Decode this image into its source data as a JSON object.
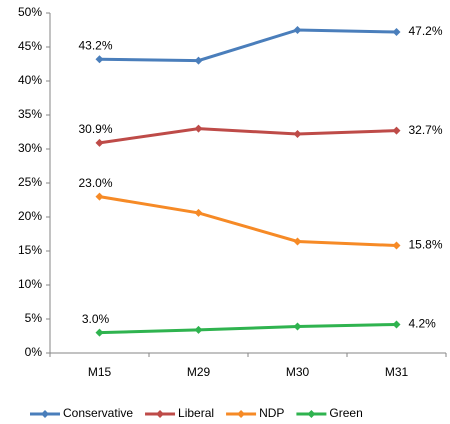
{
  "chart_data": {
    "type": "line",
    "categories": [
      "M15",
      "M29",
      "M30",
      "M31"
    ],
    "series": [
      {
        "name": "Conservative",
        "color": "#4a7ebb",
        "values": [
          43.2,
          43.0,
          47.5,
          47.2
        ],
        "value_labels": [
          "43.2%",
          null,
          null,
          "47.2%"
        ]
      },
      {
        "name": "Liberal",
        "color": "#be4b48",
        "values": [
          30.9,
          33.0,
          32.2,
          32.7
        ],
        "value_labels": [
          "30.9%",
          null,
          null,
          "32.7%"
        ]
      },
      {
        "name": "NDP",
        "color": "#f68a26",
        "values": [
          23.0,
          20.6,
          16.4,
          15.8
        ],
        "value_labels": [
          "23.0%",
          null,
          null,
          "15.8%"
        ]
      },
      {
        "name": "Green",
        "color": "#2fb34f",
        "values": [
          3.0,
          3.4,
          3.9,
          4.2
        ],
        "value_labels": [
          "3.0%",
          null,
          null,
          "4.2%"
        ]
      }
    ],
    "ylim": [
      0,
      50
    ],
    "yticks": [
      {
        "value": 0,
        "label": "0%"
      },
      {
        "value": 5,
        "label": "5%"
      },
      {
        "value": 10,
        "label": "10%"
      },
      {
        "value": 15,
        "label": "15%"
      },
      {
        "value": 20,
        "label": "20%"
      },
      {
        "value": 25,
        "label": "25%"
      },
      {
        "value": 30,
        "label": "30%"
      },
      {
        "value": 35,
        "label": "35%"
      },
      {
        "value": 40,
        "label": "40%"
      },
      {
        "value": 45,
        "label": "45%"
      },
      {
        "value": 50,
        "label": "50%"
      }
    ],
    "grid": false,
    "legend": "bottom"
  }
}
